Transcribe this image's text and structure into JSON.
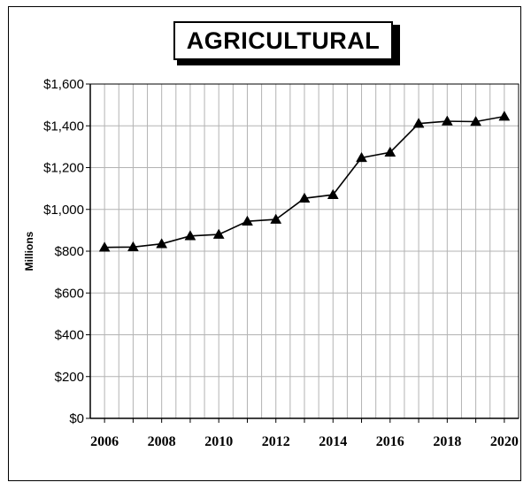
{
  "chart_data": {
    "type": "line",
    "title": "AGRICULTURAL",
    "ylabel": "Millions",
    "xlabel": "",
    "x": [
      2006,
      2007,
      2008,
      2009,
      2010,
      2011,
      2012,
      2013,
      2014,
      2015,
      2016,
      2017,
      2018,
      2019,
      2020
    ],
    "series": [
      {
        "values": [
          818,
          820,
          835,
          873,
          880,
          943,
          952,
          1053,
          1070,
          1247,
          1273,
          1411,
          1422,
          1420,
          1445
        ]
      }
    ],
    "ylim": [
      0,
      1600
    ],
    "yticks": [
      0,
      200,
      400,
      600,
      800,
      1000,
      1200,
      1400,
      1600
    ],
    "ytick_labels": [
      "$0",
      "$200",
      "$400",
      "$600",
      "$800",
      "$1,000",
      "$1,200",
      "$1,400",
      "$1,600"
    ],
    "xtick_labels": [
      "2006",
      "2008",
      "2010",
      "2012",
      "2014",
      "2016",
      "2018",
      "2020"
    ],
    "grid": true,
    "marker": "triangle",
    "line_color": "#000000"
  }
}
